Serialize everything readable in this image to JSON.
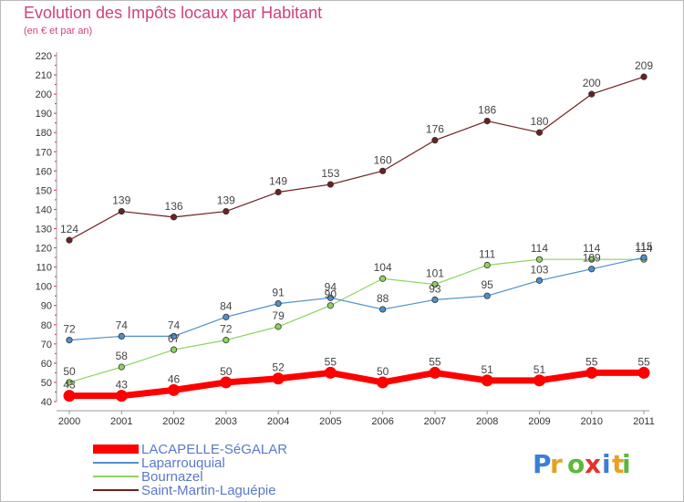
{
  "chart_data": {
    "type": "line",
    "title": "Evolution des Impôts locaux par Habitant",
    "subtitle": "(en € et par an)",
    "xlabel": "",
    "ylabel": "",
    "categories": [
      "2000",
      "2001",
      "2002",
      "2003",
      "2004",
      "2005",
      "2006",
      "2007",
      "2008",
      "2009",
      "2010",
      "2011"
    ],
    "ylim": [
      40,
      220
    ],
    "ytick_step": 10,
    "grid": false,
    "legend_position": "bottom-left",
    "series": [
      {
        "name": "LACAPELLE-SéGALAR",
        "color": "#ff0000",
        "values": [
          43,
          43,
          46,
          50,
          52,
          55,
          50,
          55,
          51,
          51,
          55,
          55
        ]
      },
      {
        "name": "Laparrouquial",
        "color": "#4f8fcc",
        "values": [
          72,
          74,
          74,
          84,
          91,
          94,
          88,
          93,
          95,
          103,
          109,
          115
        ]
      },
      {
        "name": "Bournazel",
        "color": "#8ed35e",
        "values": [
          50,
          58,
          67,
          72,
          79,
          90,
          104,
          101,
          111,
          114,
          114,
          114
        ]
      },
      {
        "name": "Saint-Martin-Laguépie",
        "color": "#6e1f1f",
        "values": [
          124,
          139,
          136,
          139,
          149,
          153,
          160,
          176,
          186,
          180,
          200,
          209
        ]
      }
    ]
  },
  "brand": {
    "letters": [
      "P",
      "r",
      "o",
      "x",
      "i",
      "t",
      "i"
    ],
    "colors": [
      "#3a7fd5",
      "#e8a020",
      "#5cb83a",
      "#e8302f",
      "#3a7fd5",
      "#e8a020",
      "#5cb83a"
    ]
  }
}
